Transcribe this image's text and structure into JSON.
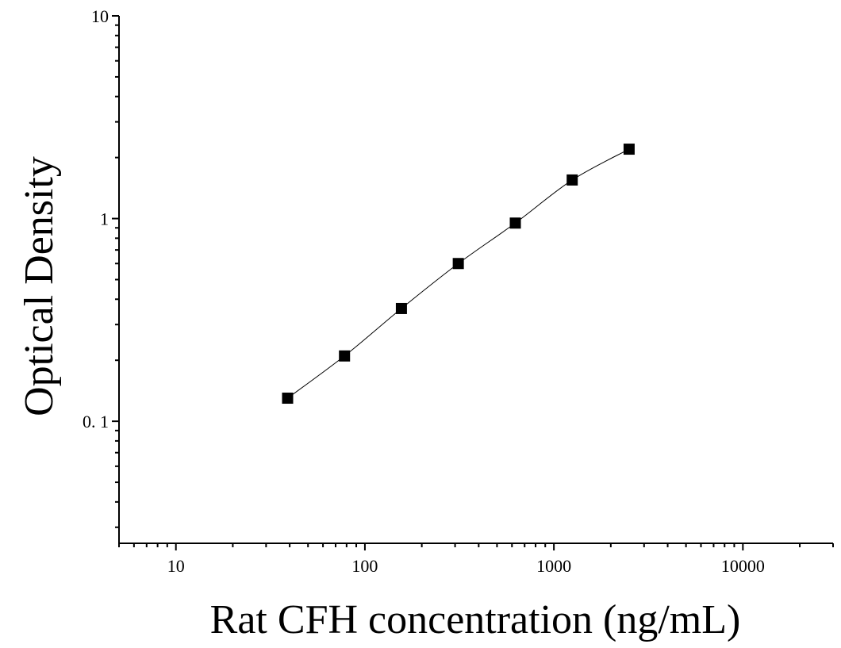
{
  "chart_data": {
    "type": "scatter",
    "title": "",
    "xlabel": "Rat CFH concentration (ng/mL)",
    "ylabel": "Optical Density",
    "x_scale": "log",
    "y_scale": "log",
    "xlim": [
      5,
      30000
    ],
    "ylim": [
      0.025,
      10
    ],
    "x_ticks": [
      {
        "value": 10,
        "label": "10"
      },
      {
        "value": 100,
        "label": "100"
      },
      {
        "value": 1000,
        "label": "1000"
      },
      {
        "value": 10000,
        "label": "10000"
      }
    ],
    "y_ticks": [
      {
        "value": 0.1,
        "label": "0. 1"
      },
      {
        "value": 1,
        "label": "1"
      },
      {
        "value": 10,
        "label": "10"
      }
    ],
    "grid": false,
    "marker": "square",
    "fit_line": true,
    "x": [
      39,
      78,
      156,
      312,
      625,
      1250,
      2500
    ],
    "y": [
      0.13,
      0.21,
      0.36,
      0.6,
      0.95,
      1.55,
      2.2
    ]
  }
}
